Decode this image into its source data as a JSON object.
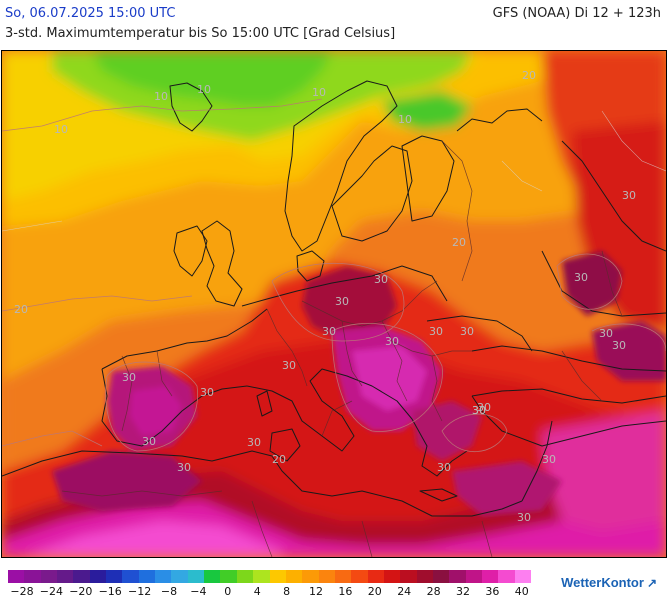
{
  "header": {
    "date_text": "So, 06.07.2025 15:00 UTC",
    "model_text": "GFS (NOAA) Di 12 + 123h",
    "subtitle": "3-std. Maximumtemperatur bis So 15:00 UTC [Grad Celsius]"
  },
  "map": {
    "contour_labels": [
      "10",
      "10",
      "10",
      "10",
      "10",
      "20",
      "20",
      "20",
      "20",
      "30",
      "30",
      "30",
      "30",
      "30",
      "30",
      "30",
      "30",
      "30",
      "30",
      "30",
      "30",
      "30",
      "30",
      "30",
      "30",
      "30",
      "30",
      "30",
      "30",
      "30",
      "30"
    ]
  },
  "legend": {
    "colors": [
      "#9b0fa5",
      "#8a1397",
      "#7a1a8c",
      "#651a8a",
      "#4b1a8e",
      "#2a1c9c",
      "#1e2fb6",
      "#1f50d2",
      "#1f6fde",
      "#2a8ee6",
      "#33a8e2",
      "#2bbccd",
      "#18c83f",
      "#41cd27",
      "#7dd71b",
      "#ade41f",
      "#fdc800",
      "#fdb000",
      "#fc9a07",
      "#fb840e",
      "#f86a12",
      "#f44a12",
      "#e82a14",
      "#d41414",
      "#bb0e20",
      "#a00d2d",
      "#8a1040",
      "#a0106a",
      "#c01488",
      "#df1fa8",
      "#f44bd0",
      "#fd7ff0"
    ],
    "tick_labels": [
      "−28",
      "−24",
      "−20",
      "−16",
      "−12",
      "−8",
      "−4",
      "0",
      "4",
      "8",
      "12",
      "16",
      "20",
      "24",
      "28",
      "32",
      "36",
      "40"
    ]
  },
  "brand": {
    "name": "WetterKontor",
    "mark": "↗"
  }
}
